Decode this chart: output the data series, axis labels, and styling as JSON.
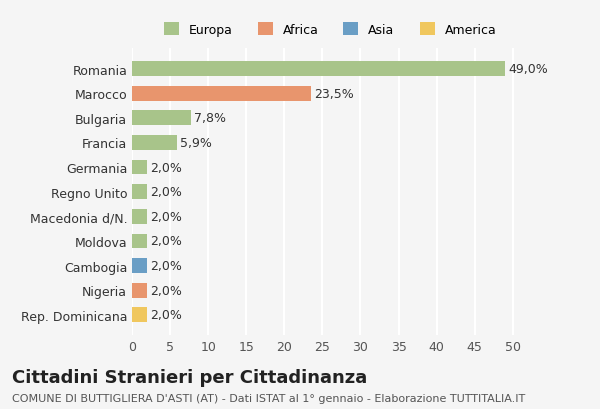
{
  "categories": [
    "Rep. Dominicana",
    "Nigeria",
    "Cambogia",
    "Moldova",
    "Macedonia d/N.",
    "Regno Unito",
    "Germania",
    "Francia",
    "Bulgaria",
    "Marocco",
    "Romania"
  ],
  "values": [
    2.0,
    2.0,
    2.0,
    2.0,
    2.0,
    2.0,
    2.0,
    5.9,
    7.8,
    23.5,
    49.0
  ],
  "labels": [
    "2,0%",
    "2,0%",
    "2,0%",
    "2,0%",
    "2,0%",
    "2,0%",
    "2,0%",
    "5,9%",
    "7,8%",
    "23,5%",
    "49,0%"
  ],
  "colors": [
    "#f0c75e",
    "#e8956d",
    "#6a9ec5",
    "#a8c48a",
    "#a8c48a",
    "#a8c48a",
    "#a8c48a",
    "#a8c48a",
    "#a8c48a",
    "#e8956d",
    "#a8c48a"
  ],
  "legend_labels": [
    "Europa",
    "Africa",
    "Asia",
    "America"
  ],
  "legend_colors": [
    "#a8c48a",
    "#e8956d",
    "#6a9ec5",
    "#f0c75e"
  ],
  "title": "Cittadini Stranieri per Cittadinanza",
  "subtitle": "COMUNE DI BUTTIGLIERA D'ASTI (AT) - Dati ISTAT al 1° gennaio - Elaborazione TUTTITALIA.IT",
  "xlim": [
    0,
    52
  ],
  "xticks": [
    0,
    5,
    10,
    15,
    20,
    25,
    30,
    35,
    40,
    45,
    50
  ],
  "bg_color": "#f5f5f5",
  "grid_color": "#ffffff",
  "label_fontsize": 9,
  "title_fontsize": 13,
  "subtitle_fontsize": 8
}
